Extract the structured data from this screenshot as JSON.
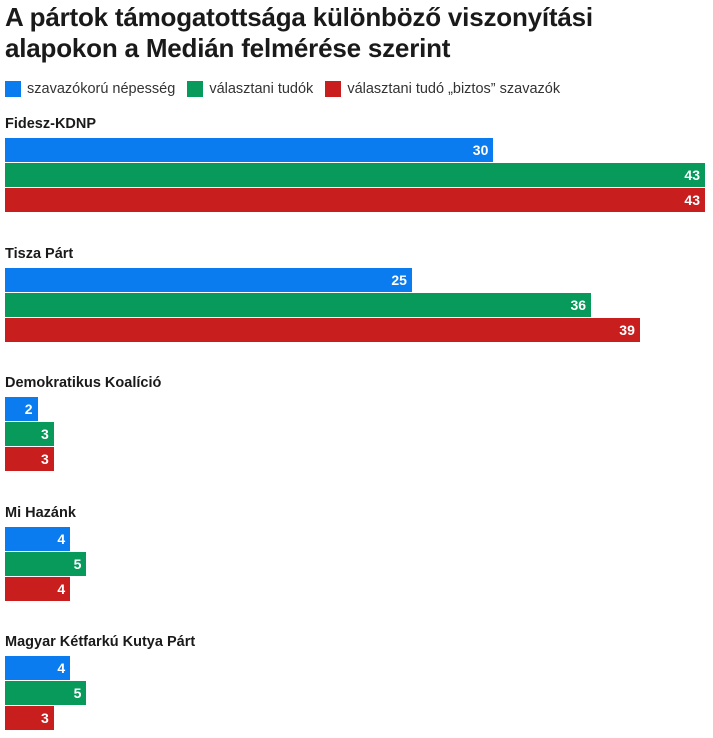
{
  "chart_data": {
    "type": "bar",
    "orientation": "horizontal",
    "title": "A pártok támogatottsága különböző viszonyítási alapokon a Medián felmérése szerint",
    "legend_placement": "top",
    "series": [
      {
        "name": "szavazókorú népesség",
        "color": "#0a7cf0",
        "values": [
          30,
          25,
          2,
          4,
          4
        ]
      },
      {
        "name": "választani tudók",
        "color": "#079a5a",
        "values": [
          43,
          36,
          3,
          5,
          5
        ]
      },
      {
        "name": "választani tudó „biztos” szavazók",
        "color": "#c81e1e",
        "values": [
          43,
          39,
          3,
          4,
          3
        ]
      }
    ],
    "categories": [
      "Fidesz-KDNP",
      "Tisza Párt",
      "Demokratikus Koalíció",
      "Mi Hazánk",
      "Magyar Kétfarkú Kutya Párt"
    ],
    "xlim": [
      0,
      43
    ]
  }
}
